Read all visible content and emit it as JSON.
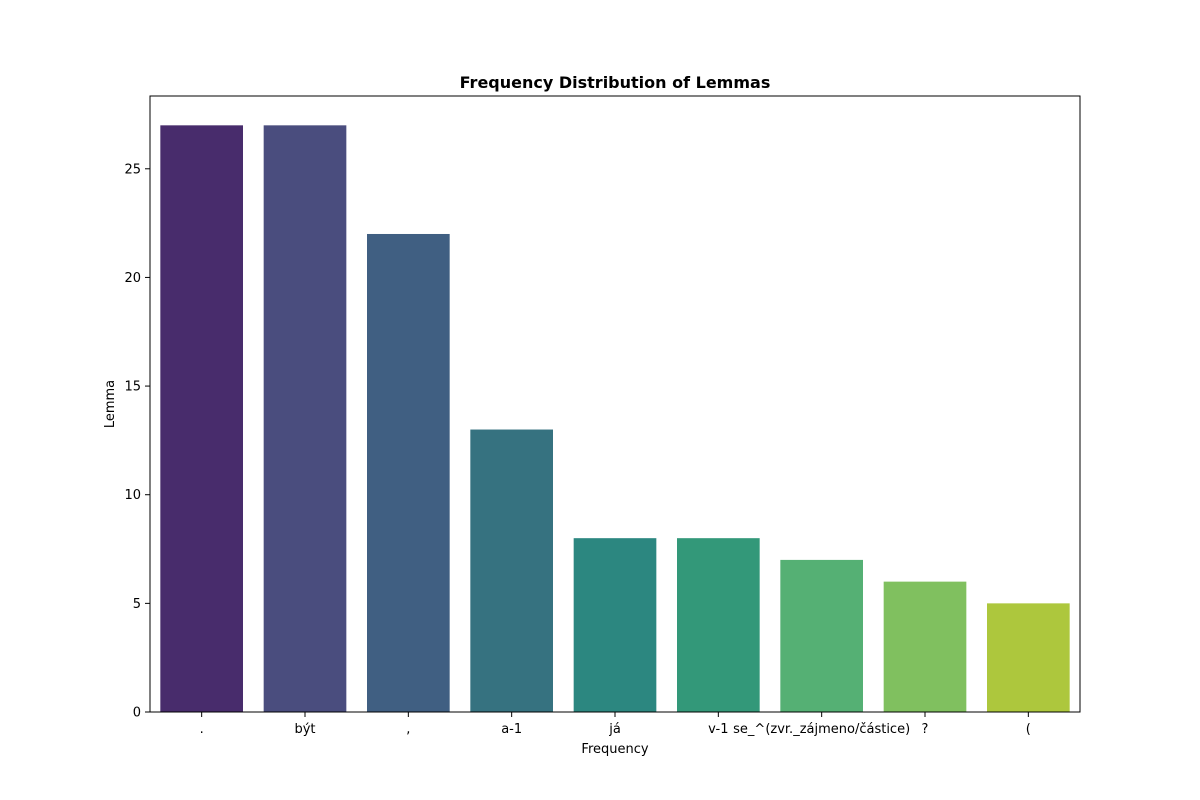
{
  "chart_data": {
    "type": "bar",
    "title": "Frequency Distribution of Lemmas",
    "xlabel": "Frequency",
    "ylabel": "Lemma",
    "categories": [
      ".",
      "být",
      ",",
      "a-1",
      "já",
      "v-1",
      "se_^(zvr._zájmeno/částice)",
      "?",
      "("
    ],
    "values": [
      27,
      27,
      22,
      13,
      8,
      8,
      7,
      6,
      5
    ],
    "colors": [
      "#482c6c",
      "#4a4d7e",
      "#405f82",
      "#367280",
      "#2c8780",
      "#339879",
      "#55b074",
      "#80c05f",
      "#adc73d"
    ],
    "ylim": [
      0,
      28.35
    ],
    "yticks": [
      0,
      5,
      10,
      15,
      20,
      25
    ],
    "grid": false,
    "legend": "none"
  }
}
